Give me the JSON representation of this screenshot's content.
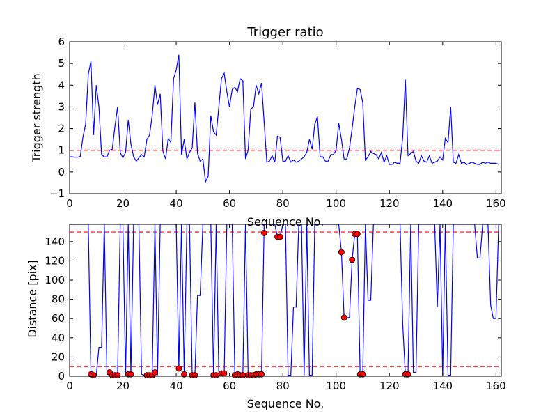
{
  "colors": {
    "line": "#0000ff",
    "threshold": "#ff0000",
    "marker_fill": "#ff0000",
    "marker_edge": "#000000"
  },
  "chart_data": [
    {
      "type": "line",
      "title": "Trigger ratio",
      "xlabel": "Sequence No.",
      "ylabel": "Trigger strength",
      "xlim": [
        0,
        162
      ],
      "ylim": [
        -1,
        6
      ],
      "xticks": [
        0,
        20,
        40,
        60,
        80,
        100,
        120,
        140,
        160
      ],
      "yticks": [
        -1,
        0,
        1,
        2,
        3,
        4,
        5,
        6
      ],
      "threshold": 1,
      "series": [
        {
          "name": "trigger strength",
          "x_start": 0,
          "values": [
            0.7,
            0.7,
            0.68,
            0.68,
            0.72,
            1.6,
            2.2,
            4.5,
            5.1,
            1.7,
            4.0,
            3.0,
            0.8,
            0.7,
            0.7,
            1.0,
            1.05,
            2.1,
            3.0,
            0.9,
            0.65,
            0.9,
            2.4,
            1.3,
            0.7,
            0.5,
            0.65,
            0.8,
            0.7,
            1.5,
            1.7,
            2.6,
            4.0,
            3.1,
            3.6,
            0.95,
            0.6,
            1.55,
            1.35,
            4.3,
            4.7,
            5.4,
            0.8,
            1.5,
            0.6,
            0.9,
            1.1,
            3.2,
            0.85,
            0.5,
            0.6,
            -0.45,
            -0.2,
            2.6,
            1.85,
            1.7,
            3.0,
            4.3,
            4.55,
            3.7,
            3.0,
            3.8,
            3.9,
            3.7,
            4.3,
            4.2,
            0.6,
            1.0,
            2.9,
            3.0,
            4.0,
            3.6,
            4.1,
            2.3,
            0.45,
            0.5,
            0.75,
            0.45,
            1.65,
            1.6,
            0.5,
            0.5,
            0.75,
            0.45,
            0.55,
            0.45,
            0.5,
            0.6,
            0.7,
            0.9,
            1.5,
            1.05,
            2.2,
            2.55,
            0.7,
            0.7,
            0.5,
            0.5,
            0.8,
            0.8,
            1.0,
            2.25,
            1.5,
            0.6,
            0.6,
            1.1,
            2.0,
            3.0,
            3.85,
            3.8,
            3.2,
            0.55,
            0.7,
            0.95,
            0.85,
            0.8,
            0.6,
            0.9,
            0.45,
            0.75,
            0.35,
            0.35,
            0.45,
            0.4,
            0.4,
            1.6,
            4.25,
            0.75,
            0.85,
            0.95,
            0.5,
            0.4,
            0.75,
            0.5,
            0.45,
            0.75,
            0.4,
            0.45,
            0.5,
            0.7,
            0.55,
            1.55,
            1.35,
            3.0,
            0.45,
            0.4,
            0.8,
            0.4,
            0.45,
            0.35,
            0.4,
            0.45,
            0.4,
            0.35,
            0.35,
            0.45,
            0.4,
            0.45,
            0.4,
            0.4,
            0.4,
            0.35
          ]
        }
      ]
    },
    {
      "type": "line",
      "title": "",
      "xlabel": "Sequence No.",
      "ylabel": "Distance [pix]",
      "xlim": [
        0,
        162
      ],
      "ylim": [
        0,
        158
      ],
      "xticks": [
        0,
        20,
        40,
        60,
        80,
        100,
        120,
        140,
        160
      ],
      "yticks": [
        0,
        20,
        40,
        60,
        80,
        100,
        120,
        140
      ],
      "thresholds": [
        10,
        150
      ],
      "series": [
        {
          "name": "distance",
          "points": [
            [
              0,
              158
            ],
            [
              6,
              158
            ],
            [
              7,
              158
            ],
            [
              8,
              2
            ],
            [
              9,
              1
            ],
            [
              10,
              1
            ],
            [
              11,
              30
            ],
            [
              12,
              30
            ],
            [
              13,
              158
            ],
            [
              14,
              2
            ],
            [
              15,
              2
            ],
            [
              16,
              1
            ],
            [
              17,
              1
            ],
            [
              18,
              1
            ],
            [
              19,
              158
            ],
            [
              20,
              158
            ],
            [
              21,
              1
            ],
            [
              22,
              158
            ],
            [
              23,
              2
            ],
            [
              24,
              158
            ],
            [
              26,
              158
            ],
            [
              27,
              2
            ],
            [
              28,
              1
            ],
            [
              29,
              1
            ],
            [
              30,
              1
            ],
            [
              31,
              2
            ],
            [
              32,
              158
            ],
            [
              33,
              1
            ],
            [
              34,
              158
            ],
            [
              40,
              158
            ],
            [
              41,
              8
            ],
            [
              42,
              158
            ],
            [
              43,
              2
            ],
            [
              44,
              158
            ],
            [
              45,
              158
            ],
            [
              46,
              1
            ],
            [
              47,
              1
            ],
            [
              48,
              84
            ],
            [
              49,
              84
            ],
            [
              50,
              158
            ],
            [
              53,
              158
            ],
            [
              54,
              1
            ],
            [
              55,
              158
            ],
            [
              56,
              1
            ],
            [
              57,
              2
            ],
            [
              58,
              2
            ],
            [
              59,
              158
            ],
            [
              61,
              158
            ],
            [
              62,
              1
            ],
            [
              63,
              1
            ],
            [
              64,
              1
            ],
            [
              65,
              1
            ],
            [
              66,
              158
            ],
            [
              67,
              1
            ],
            [
              68,
              1
            ],
            [
              69,
              1
            ],
            [
              70,
              1
            ],
            [
              71,
              1
            ],
            [
              72,
              1
            ],
            [
              73,
              158
            ],
            [
              76,
              158
            ],
            [
              77,
              158
            ],
            [
              78,
              145
            ],
            [
              79,
              145
            ],
            [
              80,
              158
            ],
            [
              81,
              158
            ],
            [
              82,
              1
            ],
            [
              83,
              1
            ],
            [
              84,
              72
            ],
            [
              85,
              72
            ],
            [
              86,
              158
            ],
            [
              87,
              158
            ],
            [
              88,
              1
            ],
            [
              89,
              158
            ],
            [
              90,
              1
            ],
            [
              91,
              1
            ],
            [
              92,
              158
            ],
            [
              99,
              158
            ],
            [
              100,
              158
            ],
            [
              101,
              158
            ],
            [
              102,
              129
            ],
            [
              103,
              61
            ],
            [
              104,
              61
            ],
            [
              105,
              61
            ],
            [
              106,
              121
            ],
            [
              107,
              148
            ],
            [
              108,
              148
            ],
            [
              109,
              2
            ],
            [
              110,
              2
            ],
            [
              111,
              158
            ],
            [
              112,
              79
            ],
            [
              113,
              79
            ],
            [
              114,
              158
            ],
            [
              124,
              158
            ],
            [
              125,
              54
            ],
            [
              126,
              2
            ],
            [
              127,
              2
            ],
            [
              128,
              158
            ],
            [
              129,
              4
            ],
            [
              130,
              4
            ],
            [
              131,
              158
            ],
            [
              137,
              158
            ],
            [
              138,
              72
            ],
            [
              139,
              158
            ],
            [
              140,
              1
            ],
            [
              141,
              158
            ],
            [
              142,
              1
            ],
            [
              143,
              1
            ],
            [
              144,
              158
            ],
            [
              150,
              158
            ],
            [
              151,
              158
            ],
            [
              152,
              158
            ],
            [
              153,
              123
            ],
            [
              154,
              123
            ],
            [
              155,
              158
            ],
            [
              156,
              158
            ],
            [
              157,
              158
            ],
            [
              158,
              74
            ],
            [
              159,
              60
            ],
            [
              160,
              60
            ],
            [
              161,
              158
            ],
            [
              162,
              158
            ]
          ]
        }
      ],
      "markers": [
        [
          8,
          2
        ],
        [
          9,
          1
        ],
        [
          15,
          4
        ],
        [
          16,
          1
        ],
        [
          17,
          1
        ],
        [
          18,
          1
        ],
        [
          22,
          2
        ],
        [
          23,
          2
        ],
        [
          29,
          1
        ],
        [
          30,
          1
        ],
        [
          31,
          1
        ],
        [
          32,
          4
        ],
        [
          41,
          8
        ],
        [
          43,
          2
        ],
        [
          46,
          1
        ],
        [
          47,
          1
        ],
        [
          54,
          1
        ],
        [
          55,
          1
        ],
        [
          57,
          3
        ],
        [
          58,
          3
        ],
        [
          62,
          1
        ],
        [
          63,
          2
        ],
        [
          64,
          1
        ],
        [
          65,
          1
        ],
        [
          67,
          1
        ],
        [
          68,
          1
        ],
        [
          69,
          1
        ],
        [
          70,
          2
        ],
        [
          71,
          2
        ],
        [
          72,
          2
        ],
        [
          73,
          149
        ],
        [
          78,
          145
        ],
        [
          79,
          145
        ],
        [
          102,
          129
        ],
        [
          103,
          61
        ],
        [
          106,
          121
        ],
        [
          107,
          148
        ],
        [
          108,
          148
        ],
        [
          109,
          2
        ],
        [
          110,
          2
        ],
        [
          126,
          2
        ],
        [
          127,
          2
        ]
      ]
    }
  ]
}
